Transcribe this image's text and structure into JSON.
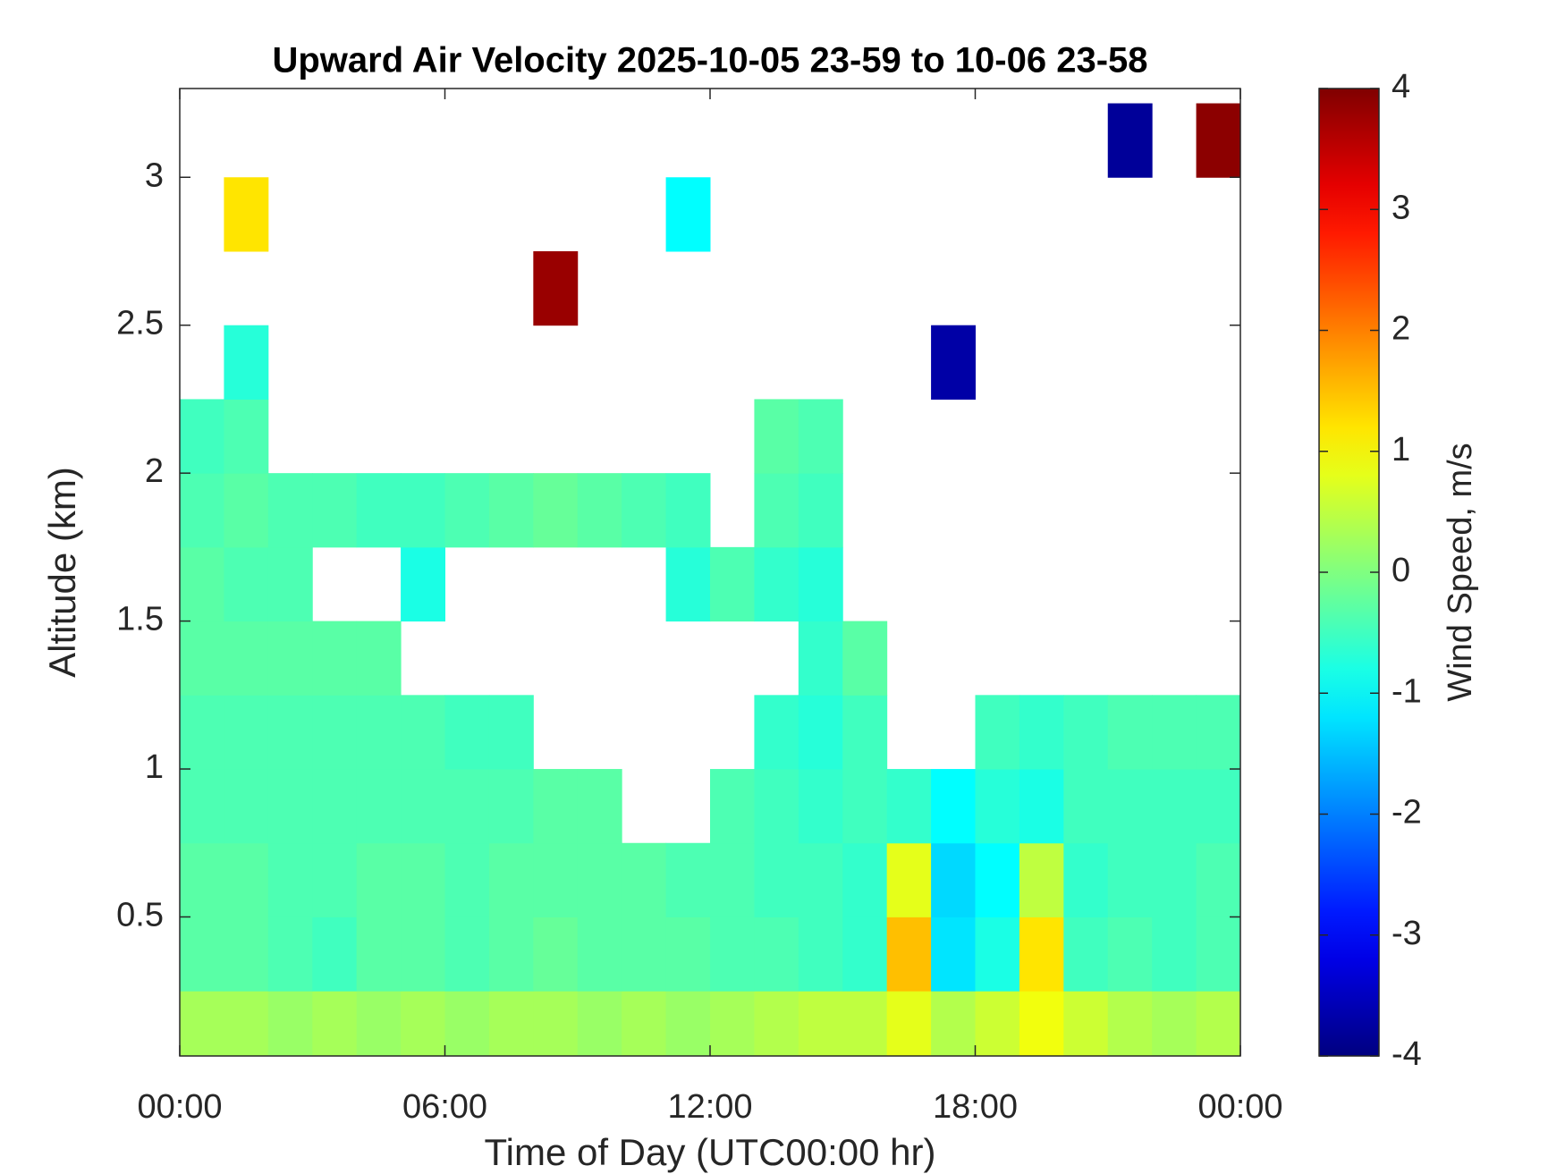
{
  "chart_data": {
    "type": "heatmap",
    "title": "Upward Air Velocity 2025-10-05 23-59 to 10-06 23-58",
    "x_label": "Time of Day (UTC00:00 hr)",
    "y_label": "Altitude (km)",
    "colorbar_label": "Wind Speed, m/s",
    "colormap": "jet",
    "xlim": [
      0,
      24
    ],
    "xticks": [
      {
        "value": 0,
        "label": "00:00"
      },
      {
        "value": 6,
        "label": "06:00"
      },
      {
        "value": 12,
        "label": "12:00"
      },
      {
        "value": 18,
        "label": "18:00"
      },
      {
        "value": 24,
        "label": "00:00"
      }
    ],
    "ylim": [
      0.03,
      3.3
    ],
    "yticks": [
      0.5,
      1,
      1.5,
      2,
      2.5,
      3
    ],
    "clim": [
      -4,
      4
    ],
    "cticks": [
      -4,
      -3,
      -2,
      -1,
      0,
      1,
      2,
      3,
      4
    ],
    "x": [
      0.5,
      1.5,
      2.5,
      3.5,
      4.5,
      5.5,
      6.5,
      7.5,
      8.5,
      9.5,
      10.5,
      11.5,
      12.5,
      13.5,
      14.5,
      15.5,
      16.5,
      17.5,
      18.5,
      19.5,
      20.5,
      21.5,
      22.5,
      23.5
    ],
    "y": [
      0.125,
      0.375,
      0.625,
      0.875,
      1.125,
      1.375,
      1.625,
      1.875,
      2.125,
      2.375,
      2.625,
      2.875,
      3.125
    ],
    "values": [
      [
        0.3,
        0.3,
        0.2,
        0.3,
        0.2,
        0.3,
        0.2,
        0.3,
        0.3,
        0.2,
        0.3,
        0.2,
        0.3,
        0.4,
        0.5,
        0.5,
        0.8,
        0.4,
        0.6,
        0.9,
        0.6,
        0.4,
        0.3,
        0.4
      ],
      [
        -0.3,
        -0.3,
        -0.4,
        -0.5,
        -0.3,
        -0.3,
        -0.4,
        -0.3,
        -0.2,
        -0.3,
        -0.3,
        -0.3,
        -0.4,
        -0.4,
        -0.5,
        -0.6,
        1.5,
        -1.2,
        -0.8,
        1.2,
        -0.5,
        -0.4,
        -0.5,
        -0.4
      ],
      [
        -0.3,
        -0.3,
        -0.4,
        -0.4,
        -0.3,
        -0.3,
        -0.4,
        -0.3,
        -0.3,
        -0.3,
        -0.3,
        -0.4,
        -0.4,
        -0.5,
        -0.5,
        -0.6,
        0.8,
        -1.3,
        -1.0,
        0.5,
        -0.6,
        -0.5,
        -0.5,
        -0.4
      ],
      [
        -0.4,
        -0.4,
        -0.4,
        -0.4,
        -0.4,
        -0.4,
        -0.4,
        -0.4,
        -0.3,
        -0.3,
        null,
        null,
        -0.4,
        -0.5,
        -0.6,
        -0.5,
        -0.6,
        -1.0,
        -0.7,
        -0.8,
        -0.5,
        -0.5,
        -0.5,
        -0.5
      ],
      [
        -0.4,
        -0.4,
        -0.4,
        -0.4,
        -0.4,
        -0.4,
        -0.5,
        -0.5,
        null,
        null,
        null,
        null,
        null,
        -0.6,
        -0.7,
        -0.5,
        null,
        null,
        -0.5,
        -0.6,
        -0.5,
        -0.4,
        -0.4,
        -0.4
      ],
      [
        -0.3,
        -0.3,
        -0.3,
        -0.3,
        -0.3,
        null,
        null,
        null,
        null,
        null,
        null,
        null,
        null,
        null,
        -0.6,
        -0.3,
        null,
        null,
        null,
        null,
        null,
        null,
        null,
        null
      ],
      [
        -0.3,
        -0.4,
        -0.4,
        null,
        null,
        -0.8,
        null,
        null,
        null,
        null,
        null,
        -0.7,
        -0.4,
        -0.6,
        -0.7,
        null,
        null,
        null,
        null,
        null,
        null,
        null,
        null,
        null
      ],
      [
        -0.4,
        -0.3,
        -0.4,
        -0.4,
        -0.5,
        -0.5,
        -0.4,
        -0.3,
        -0.2,
        -0.3,
        -0.4,
        -0.5,
        null,
        -0.4,
        -0.5,
        null,
        null,
        null,
        null,
        null,
        null,
        null,
        null,
        null
      ],
      [
        -0.5,
        -0.4,
        null,
        null,
        null,
        null,
        null,
        null,
        null,
        null,
        null,
        null,
        null,
        -0.3,
        -0.4,
        null,
        null,
        null,
        null,
        null,
        null,
        null,
        null,
        null
      ],
      [
        null,
        -0.7,
        null,
        null,
        null,
        null,
        null,
        null,
        null,
        null,
        null,
        null,
        null,
        null,
        null,
        null,
        null,
        -3.7,
        null,
        null,
        null,
        null,
        null,
        null
      ],
      [
        null,
        null,
        null,
        null,
        null,
        null,
        null,
        null,
        3.8,
        null,
        null,
        null,
        null,
        null,
        null,
        null,
        null,
        null,
        null,
        null,
        null,
        null,
        null,
        null
      ],
      [
        null,
        1.2,
        null,
        null,
        null,
        null,
        null,
        null,
        null,
        null,
        null,
        -1.0,
        null,
        null,
        null,
        null,
        null,
        null,
        null,
        null,
        null,
        null,
        null,
        null
      ],
      [
        null,
        null,
        null,
        null,
        null,
        null,
        null,
        null,
        null,
        null,
        null,
        null,
        null,
        null,
        null,
        null,
        null,
        null,
        null,
        null,
        null,
        -3.8,
        null,
        3.9
      ]
    ]
  }
}
